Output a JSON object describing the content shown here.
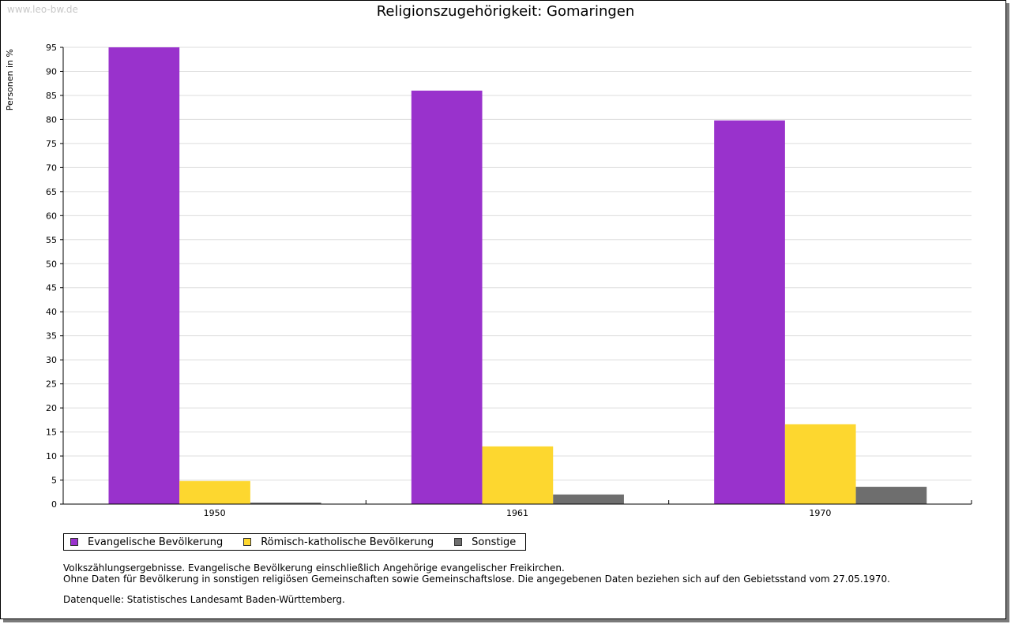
{
  "watermark": "www.leo-bw.de",
  "chart_data": {
    "type": "bar",
    "title": "Religionszugehörigkeit: Gomaringen",
    "xlabel": "",
    "ylabel": "Personen in %",
    "ylim": [
      0,
      95
    ],
    "ytick_step": 5,
    "grid": true,
    "categories": [
      "1950",
      "1961",
      "1970"
    ],
    "series": [
      {
        "name": "Evangelische Bevölkerung",
        "color": "#9932CC",
        "values": [
          95.0,
          86.0,
          79.8
        ]
      },
      {
        "name": "Römisch-katholische Bevölkerung",
        "color": "#FDD72F",
        "values": [
          4.8,
          12.0,
          16.6
        ]
      },
      {
        "name": "Sonstige",
        "color": "#6E6E6E",
        "values": [
          0.3,
          2.0,
          3.6
        ]
      }
    ],
    "legend_position": "bottom-left"
  },
  "notes": [
    "Volkszählungsergebnisse. Evangelische Bevölkerung einschließlich Angehörige evangelischer Freikirchen.",
    "Ohne Daten für Bevölkerung in sonstigen religiösen Gemeinschaften sowie Gemeinschaftslose. Die angegebenen Daten beziehen sich auf den Gebietsstand vom 27.05.1970."
  ],
  "source": "Datenquelle: Statistisches Landesamt Baden-Württemberg."
}
